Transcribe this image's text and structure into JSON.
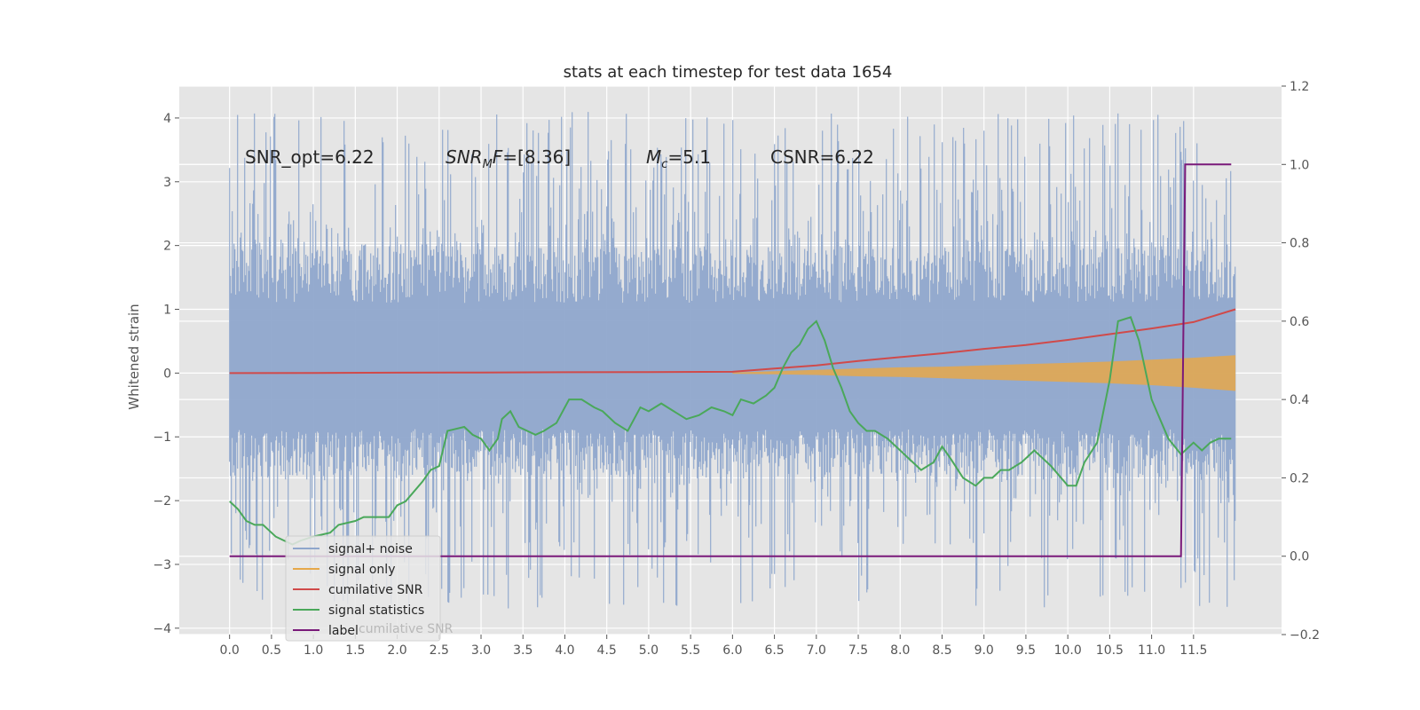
{
  "chart_data": {
    "type": "line",
    "title": "stats at each timestep for test data 1654",
    "ylabel": "Whitened strain",
    "y2label": "",
    "xlim": [
      -0.6,
      12.55
    ],
    "ylim": [
      -4.1,
      4.5
    ],
    "y2lim": [
      -0.2,
      1.2
    ],
    "x_ticks": [
      "0.0",
      "0.5",
      "1.0",
      "1.5",
      "2.0",
      "2.5",
      "3.0",
      "3.5",
      "4.0",
      "4.5",
      "5.0",
      "5.5",
      "6.0",
      "6.5",
      "7.0",
      "7.5",
      "8.0",
      "8.5",
      "9.0",
      "9.5",
      "10.0",
      "10.5",
      "11.0",
      "11.5"
    ],
    "y_ticks": [
      "4",
      "3",
      "2",
      "1",
      "0",
      "−1",
      "−2",
      "−3",
      "−4"
    ],
    "y2_ticks": [
      "1.2",
      "1.0",
      "0.8",
      "0.6",
      "0.4",
      "0.2",
      "0.0",
      "−0.2"
    ],
    "grid": true,
    "legend_position": "lower-left",
    "annotations": {
      "snr_opt": "SNR_opt=6.22",
      "snr_mf_main": "SNR",
      "snr_mf_sub": "M",
      "snr_mf_tail": "F",
      "snr_mf_value": "=[8.36]",
      "mc_main": "M",
      "mc_sub": "c",
      "mc_value": "=5.1",
      "csnr": "CSNR=6.22"
    },
    "legend_hidden_text": "cumilative SNR",
    "colors": {
      "noise": "#8fa6cc",
      "signal_only": "#e6a84a",
      "cum_snr": "#d04a4a",
      "stats": "#4aa85a",
      "label": "#7a1a7a",
      "background": "#e5e5e5"
    },
    "series": [
      {
        "name": "signal+ noise",
        "axis": "left",
        "style": "noise-band",
        "x_range": [
          0.0,
          12.0
        ],
        "envelope_typical": [
          -1.6,
          2.0
        ],
        "spike_range": [
          -3.7,
          4.1
        ]
      },
      {
        "name": "signal only",
        "axis": "left",
        "style": "band",
        "x": [
          6.0,
          6.5,
          7.0,
          7.5,
          8.0,
          8.5,
          9.0,
          9.5,
          10.0,
          10.5,
          11.0,
          11.5,
          12.0
        ],
        "upper": [
          0.01,
          0.03,
          0.05,
          0.07,
          0.09,
          0.1,
          0.12,
          0.14,
          0.16,
          0.18,
          0.21,
          0.24,
          0.28
        ],
        "lower": [
          -0.01,
          -0.02,
          -0.03,
          -0.05,
          -0.06,
          -0.08,
          -0.1,
          -0.12,
          -0.14,
          -0.16,
          -0.19,
          -0.23,
          -0.28
        ]
      },
      {
        "name": "cumilative SNR",
        "axis": "left",
        "style": "line",
        "x": [
          0.0,
          1.0,
          2.0,
          3.0,
          4.0,
          5.0,
          6.0,
          6.5,
          7.0,
          7.5,
          8.0,
          8.5,
          9.0,
          9.5,
          10.0,
          10.5,
          11.0,
          11.5,
          12.0
        ],
        "values": [
          0.0,
          0.003,
          0.006,
          0.01,
          0.013,
          0.016,
          0.02,
          0.07,
          0.12,
          0.19,
          0.25,
          0.31,
          0.38,
          0.44,
          0.52,
          0.61,
          0.7,
          0.8,
          1.0
        ]
      },
      {
        "name": "signal statistics",
        "axis": "right",
        "style": "line",
        "x": [
          0.0,
          0.1,
          0.2,
          0.3,
          0.4,
          0.5,
          0.55,
          0.65,
          0.75,
          0.85,
          1.0,
          1.2,
          1.3,
          1.5,
          1.6,
          1.7,
          1.8,
          1.9,
          2.0,
          2.1,
          2.3,
          2.4,
          2.5,
          2.6,
          2.8,
          2.9,
          3.0,
          3.1,
          3.2,
          3.25,
          3.35,
          3.45,
          3.55,
          3.65,
          3.75,
          3.9,
          4.05,
          4.2,
          4.35,
          4.45,
          4.6,
          4.75,
          4.9,
          5.0,
          5.15,
          5.3,
          5.45,
          5.6,
          5.75,
          5.9,
          6.0,
          6.1,
          6.25,
          6.4,
          6.5,
          6.6,
          6.7,
          6.8,
          6.9,
          7.0,
          7.1,
          7.2,
          7.3,
          7.4,
          7.5,
          7.6,
          7.7,
          7.85,
          8.0,
          8.1,
          8.25,
          8.4,
          8.5,
          8.6,
          8.75,
          8.9,
          9.0,
          9.1,
          9.2,
          9.3,
          9.45,
          9.6,
          9.8,
          10.0,
          10.1,
          10.2,
          10.35,
          10.5,
          10.6,
          10.75,
          10.85,
          11.0,
          11.2,
          11.35,
          11.5,
          11.6,
          11.7,
          11.8,
          11.95
        ],
        "values": [
          0.14,
          0.12,
          0.09,
          0.08,
          0.08,
          0.06,
          0.05,
          0.04,
          0.03,
          0.04,
          0.05,
          0.06,
          0.08,
          0.09,
          0.1,
          0.1,
          0.1,
          0.1,
          0.13,
          0.14,
          0.19,
          0.22,
          0.23,
          0.32,
          0.33,
          0.31,
          0.3,
          0.27,
          0.3,
          0.35,
          0.37,
          0.33,
          0.32,
          0.31,
          0.32,
          0.34,
          0.4,
          0.4,
          0.38,
          0.37,
          0.34,
          0.32,
          0.38,
          0.37,
          0.39,
          0.37,
          0.35,
          0.36,
          0.38,
          0.37,
          0.36,
          0.4,
          0.39,
          0.41,
          0.43,
          0.48,
          0.52,
          0.54,
          0.58,
          0.6,
          0.55,
          0.48,
          0.43,
          0.37,
          0.34,
          0.32,
          0.32,
          0.3,
          0.27,
          0.25,
          0.22,
          0.24,
          0.28,
          0.25,
          0.2,
          0.18,
          0.2,
          0.2,
          0.22,
          0.22,
          0.24,
          0.27,
          0.23,
          0.18,
          0.18,
          0.24,
          0.29,
          0.45,
          0.6,
          0.61,
          0.55,
          0.4,
          0.3,
          0.26,
          0.29,
          0.27,
          0.29,
          0.3,
          0.3
        ]
      },
      {
        "name": "label",
        "axis": "right",
        "style": "step",
        "x": [
          0.0,
          11.35,
          11.4,
          11.5,
          11.95
        ],
        "values": [
          0.0,
          0.0,
          1.0,
          1.0,
          1.0
        ]
      }
    ]
  }
}
